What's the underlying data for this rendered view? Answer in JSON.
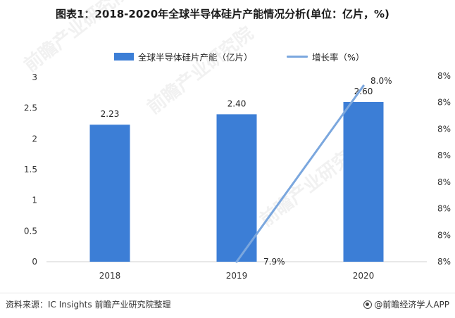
{
  "title": "图表1：2018-2020年全球半导体硅片产能情况分析(单位：亿片，%)",
  "legend": {
    "bar_label": "全球半导体硅片产能（亿片）",
    "line_label": "增长率（%）"
  },
  "colors": {
    "bar": "#3c7ed6",
    "line": "#7ba7de"
  },
  "footer": {
    "source": "资料来源：IC Insights 前瞻产业研究院整理",
    "brand": "@前瞻经济学人APP"
  },
  "chart_data": {
    "type": "bar",
    "categories": [
      "2018",
      "2019",
      "2020"
    ],
    "series": [
      {
        "name": "全球半导体硅片产能（亿片）",
        "type": "bar",
        "axis": "left",
        "values": [
          2.23,
          2.4,
          2.6
        ],
        "labels": [
          "2.23",
          "2.40",
          "2.60"
        ]
      },
      {
        "name": "增长率（%）",
        "type": "line",
        "axis": "right",
        "values": [
          null,
          7.9,
          8.0
        ],
        "labels": [
          "",
          "7.9%",
          "8.0%"
        ]
      }
    ],
    "y_left": {
      "min": 0,
      "max": 3,
      "ticks": [
        "0",
        "0.5",
        "1",
        "1.5",
        "2",
        "2.5",
        "3"
      ]
    },
    "y_right": {
      "min": 7.9,
      "max": 8.0,
      "ticks": [
        "8%",
        "8%",
        "8%",
        "8%",
        "8%",
        "8%",
        "8%",
        "8%"
      ]
    },
    "grid": false,
    "legend_position": "top"
  }
}
